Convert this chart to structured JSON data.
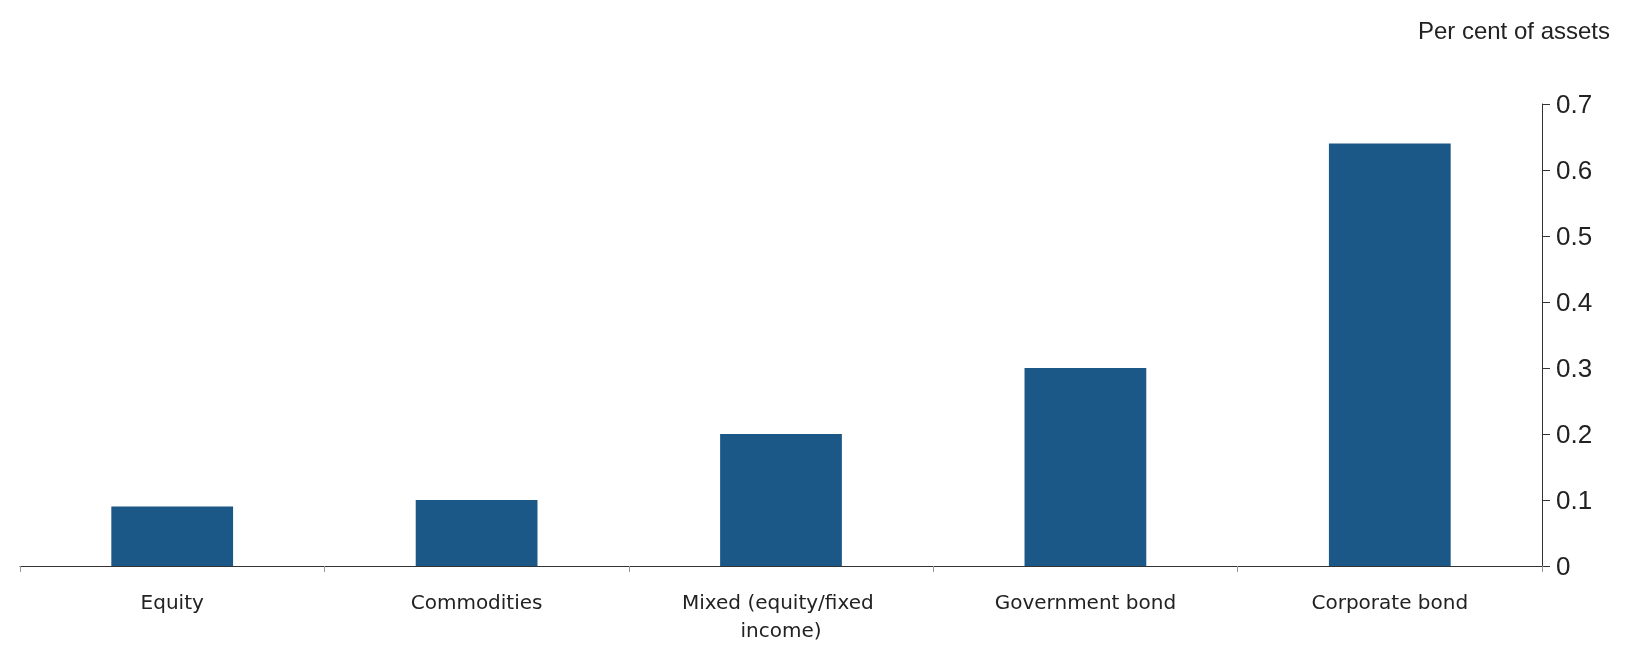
{
  "chart_data": {
    "type": "bar",
    "ylabel": "Per cent of assets",
    "categories": [
      "Equity",
      "Commodities",
      "Mixed (equity/fixed income)",
      "Government bond",
      "Corporate bond"
    ],
    "values": [
      0.09,
      0.1,
      0.2,
      0.3,
      0.64
    ],
    "color": "#1b5787",
    "ylim": [
      0,
      0.7
    ],
    "yticks": [
      0,
      0.1,
      0.2,
      0.3,
      0.4,
      0.5,
      0.6,
      0.7
    ],
    "grid": false
  }
}
